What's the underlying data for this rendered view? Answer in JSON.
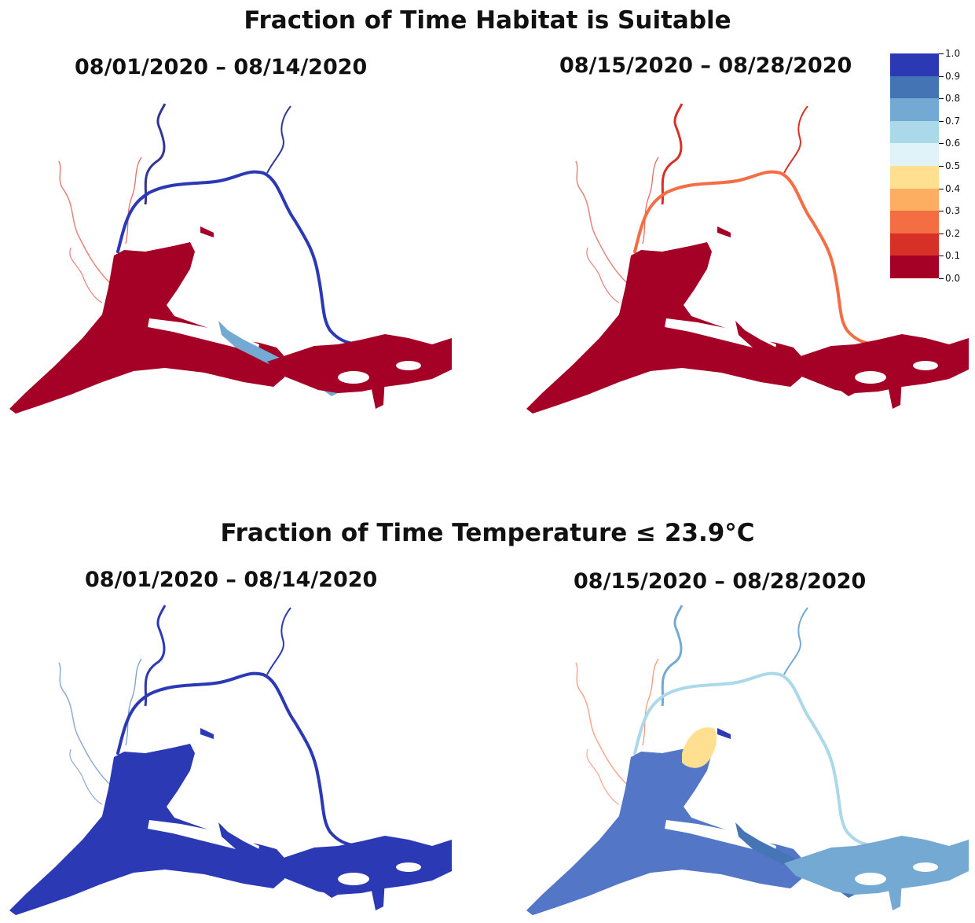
{
  "figure": {
    "top_title": "Fraction of Time Habitat is Suitable",
    "bottom_title": "Fraction of Time Temperature ≤ 23.9°C"
  },
  "panels": [
    {
      "id": "habitat-1",
      "date_range": "08/01/2020 – 08/14/2020",
      "metric": "habitat",
      "period": 1,
      "dominant_class": "0.0-0.1",
      "notes_colors": {
        "main": "#a50026",
        "upper_river": "#313695"
      }
    },
    {
      "id": "habitat-2",
      "date_range": "08/15/2020 – 08/28/2020",
      "metric": "habitat",
      "period": 2,
      "dominant_class": "0.0-0.1",
      "notes_colors": {
        "main": "#a50026",
        "upper_river": "#f46d43"
      }
    },
    {
      "id": "temperature-1",
      "date_range": "08/01/2020 – 08/14/2020",
      "metric": "temperature",
      "period": 1,
      "dominant_class": "0.9-1.0",
      "notes_colors": {
        "main": "#313695",
        "upper_river": "#313695"
      }
    },
    {
      "id": "temperature-2",
      "date_range": "08/15/2020 – 08/28/2020",
      "metric": "temperature",
      "period": 2,
      "dominant_class": "mixed",
      "notes_colors": {
        "main": "#313695",
        "upper_river": "#abd9e9"
      }
    }
  ],
  "legend": {
    "min": 0.0,
    "max": 1.0,
    "tick_labels": [
      "1.0",
      "0.9",
      "0.8",
      "0.7",
      "0.6",
      "0.5",
      "0.4",
      "0.3",
      "0.2",
      "0.1",
      "0.0"
    ],
    "colors_top_to_bottom": [
      "#2c39b5",
      "#4574b4",
      "#74a9d3",
      "#abd9e9",
      "#e0f3f8",
      "#fee090",
      "#fdae61",
      "#f46d43",
      "#d73027",
      "#a50026"
    ]
  }
}
